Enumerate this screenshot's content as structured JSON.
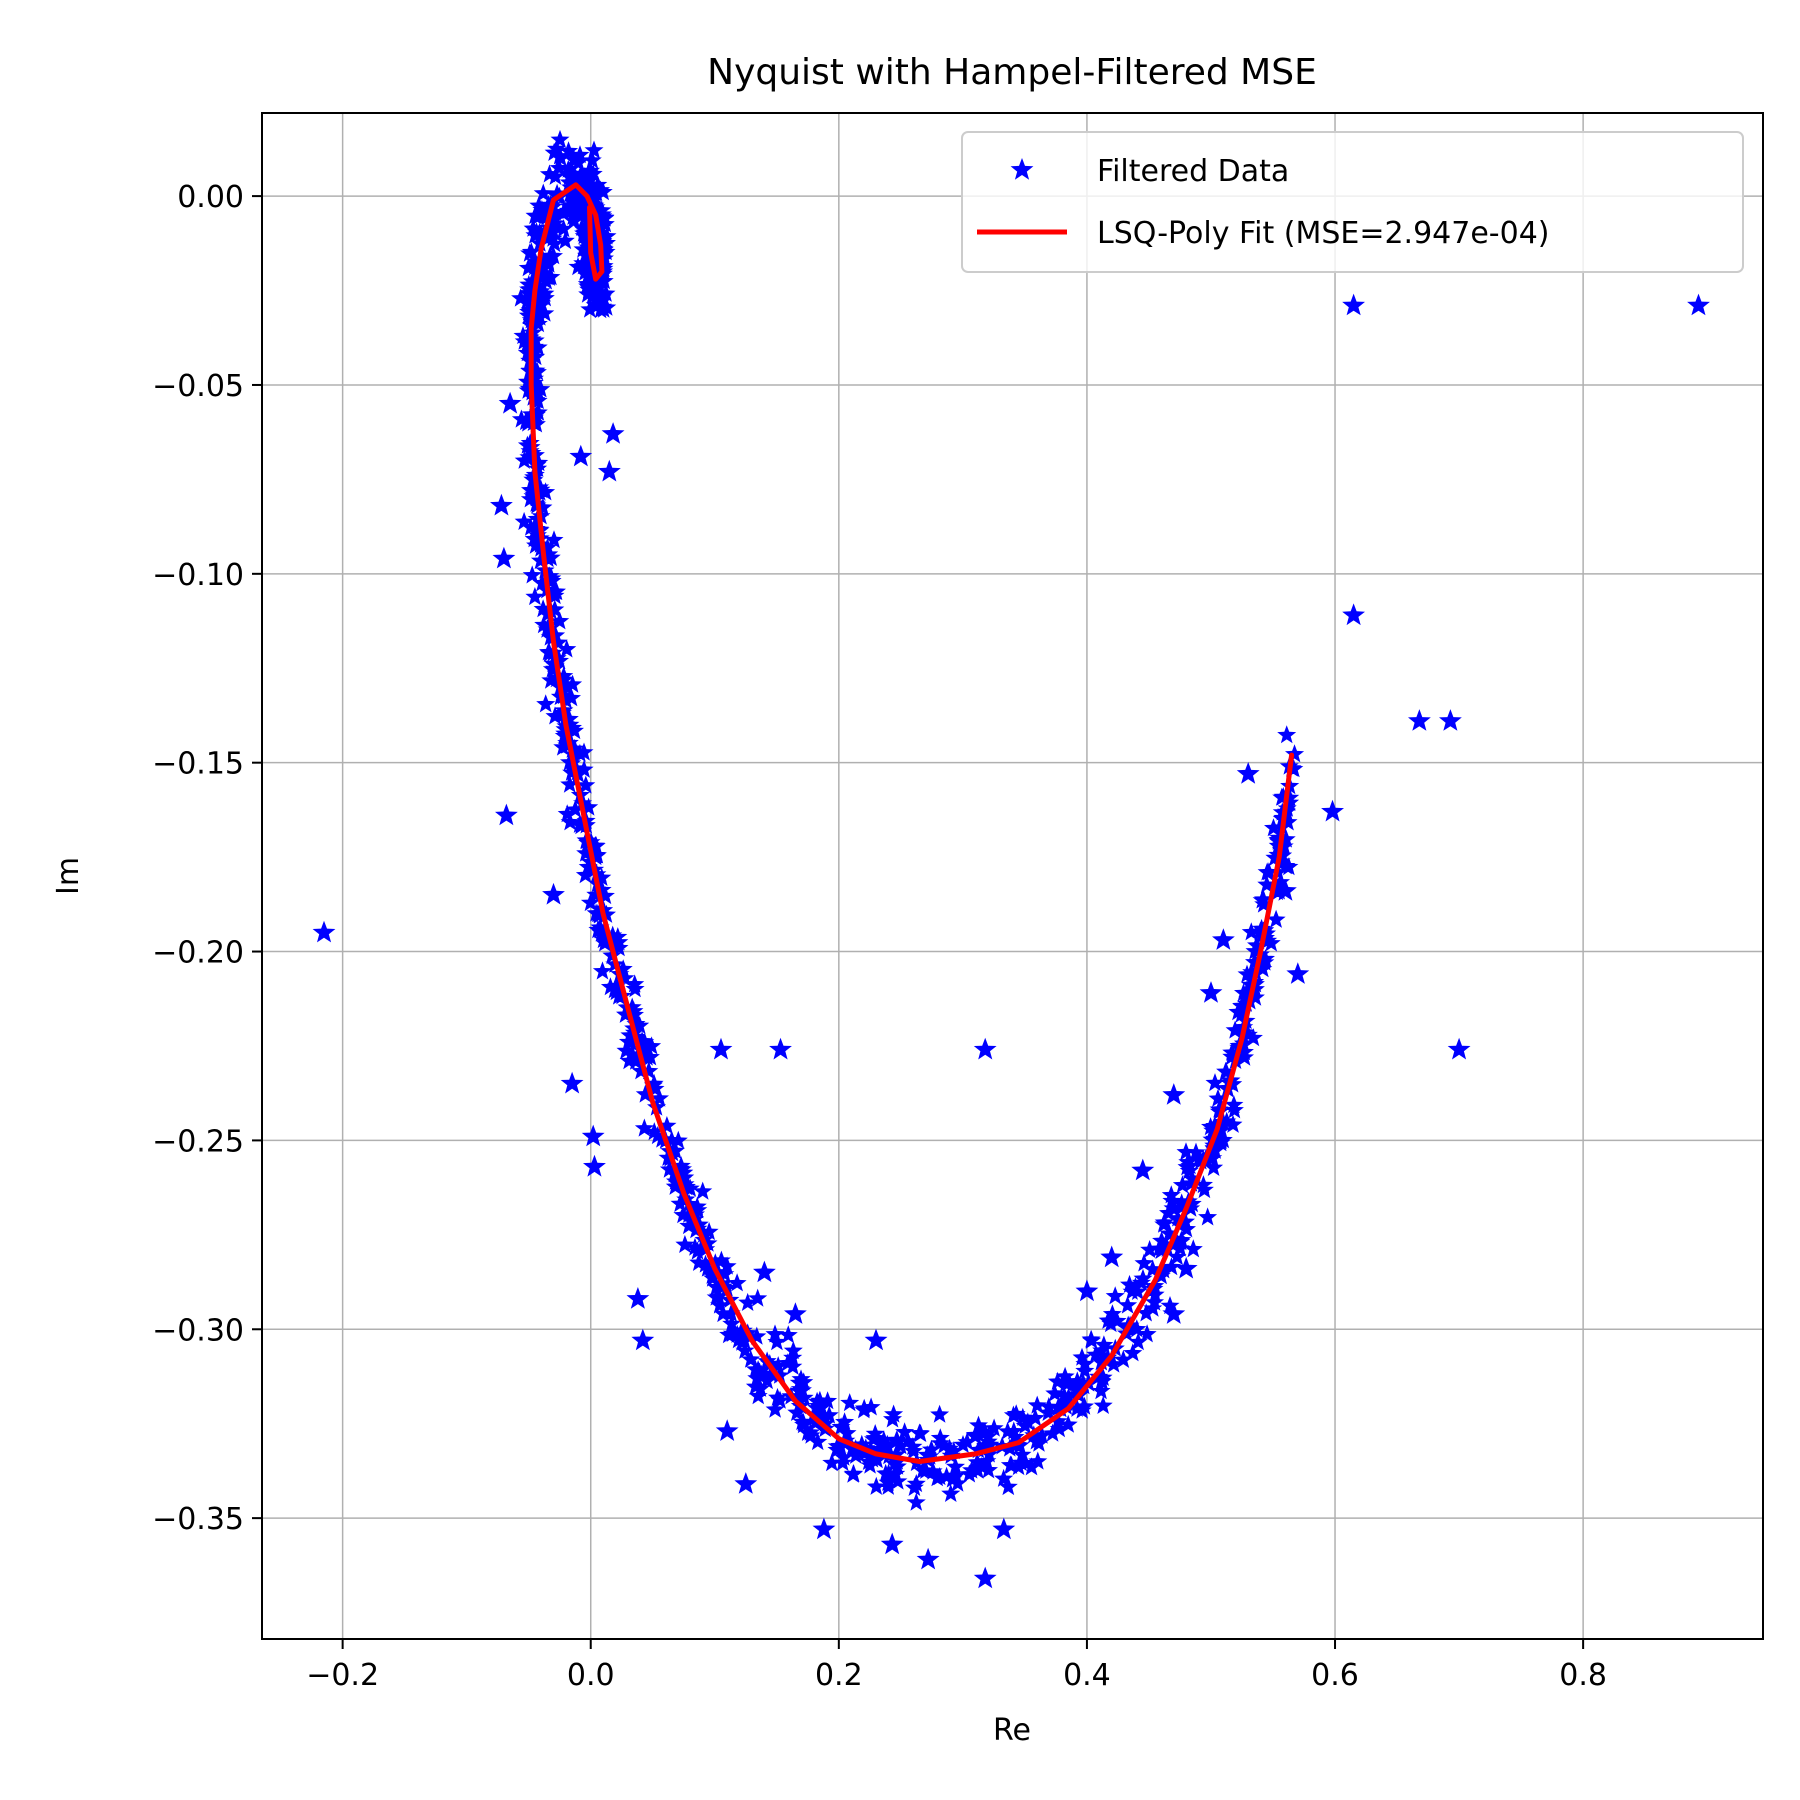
{
  "chart_data": {
    "type": "scatter",
    "title": "Nyquist with Hampel-Filtered MSE",
    "xlabel": "Re",
    "ylabel": "Im",
    "xlim": [
      -0.265,
      0.945
    ],
    "ylim": [
      -0.382,
      0.022
    ],
    "xticks": [
      -0.2,
      0.0,
      0.2,
      0.4,
      0.6,
      0.8
    ],
    "xtick_labels": [
      "−0.2",
      "0.0",
      "0.2",
      "0.4",
      "0.6",
      "0.8"
    ],
    "yticks": [
      0.0,
      -0.05,
      -0.1,
      -0.15,
      -0.2,
      -0.25,
      -0.3,
      -0.35
    ],
    "ytick_labels": [
      "0.00",
      "−0.05",
      "−0.10",
      "−0.15",
      "−0.20",
      "−0.25",
      "−0.30",
      "−0.35"
    ],
    "grid": true,
    "legend_position": "top-right",
    "colors": {
      "data": "#0000ff",
      "fit": "#ff0000",
      "grid": "#b0b0b0"
    },
    "series": [
      {
        "name": "Filtered Data",
        "kind": "scatter",
        "marker": "star",
        "note": "dense cloud of points scattered around the fit curve, plus outliers",
        "outliers": [
          [
            -0.215,
            -0.195
          ],
          [
            0.615,
            -0.029
          ],
          [
            0.893,
            -0.029
          ],
          [
            0.615,
            -0.111
          ],
          [
            0.668,
            -0.139
          ],
          [
            0.693,
            -0.139
          ],
          [
            0.598,
            -0.163
          ],
          [
            0.7,
            -0.226
          ],
          [
            0.105,
            -0.226
          ],
          [
            0.153,
            -0.226
          ],
          [
            0.318,
            -0.226
          ],
          [
            -0.068,
            -0.164
          ],
          [
            -0.07,
            -0.096
          ],
          [
            -0.072,
            -0.082
          ],
          [
            -0.065,
            -0.055
          ],
          [
            0.018,
            -0.063
          ],
          [
            0.015,
            -0.073
          ],
          [
            -0.008,
            -0.069
          ],
          [
            -0.03,
            -0.185
          ],
          [
            -0.015,
            -0.235
          ],
          [
            0.002,
            -0.249
          ],
          [
            0.003,
            -0.257
          ],
          [
            0.038,
            -0.292
          ],
          [
            0.042,
            -0.303
          ],
          [
            0.11,
            -0.327
          ],
          [
            0.125,
            -0.341
          ],
          [
            0.188,
            -0.353
          ],
          [
            0.243,
            -0.357
          ],
          [
            0.272,
            -0.361
          ],
          [
            0.318,
            -0.366
          ],
          [
            0.333,
            -0.353
          ],
          [
            0.23,
            -0.303
          ],
          [
            0.14,
            -0.285
          ],
          [
            0.165,
            -0.296
          ],
          [
            0.4,
            -0.29
          ],
          [
            0.42,
            -0.281
          ],
          [
            0.445,
            -0.258
          ],
          [
            0.47,
            -0.238
          ],
          [
            0.47,
            -0.296
          ],
          [
            0.48,
            -0.284
          ],
          [
            0.5,
            -0.211
          ],
          [
            0.51,
            -0.197
          ],
          [
            0.53,
            -0.153
          ],
          [
            0.56,
            -0.184
          ],
          [
            0.57,
            -0.206
          ]
        ]
      },
      {
        "name": "LSQ-Poly Fit (MSE=2.947e-04)",
        "kind": "line",
        "points": [
          [
            0.565,
            -0.148
          ],
          [
            0.555,
            -0.175
          ],
          [
            0.54,
            -0.2
          ],
          [
            0.525,
            -0.223
          ],
          [
            0.505,
            -0.247
          ],
          [
            0.48,
            -0.268
          ],
          [
            0.455,
            -0.287
          ],
          [
            0.42,
            -0.307
          ],
          [
            0.385,
            -0.321
          ],
          [
            0.345,
            -0.33
          ],
          [
            0.31,
            -0.333
          ],
          [
            0.265,
            -0.335
          ],
          [
            0.23,
            -0.333
          ],
          [
            0.2,
            -0.329
          ],
          [
            0.165,
            -0.319
          ],
          [
            0.13,
            -0.303
          ],
          [
            0.1,
            -0.284
          ],
          [
            0.075,
            -0.264
          ],
          [
            0.05,
            -0.24
          ],
          [
            0.03,
            -0.215
          ],
          [
            0.01,
            -0.19
          ],
          [
            -0.005,
            -0.165
          ],
          [
            -0.02,
            -0.14
          ],
          [
            -0.03,
            -0.118
          ],
          [
            -0.038,
            -0.095
          ],
          [
            -0.045,
            -0.073
          ],
          [
            -0.048,
            -0.05
          ],
          [
            -0.048,
            -0.035
          ],
          [
            -0.045,
            -0.025
          ],
          [
            -0.04,
            -0.014
          ],
          [
            -0.03,
            -0.001
          ],
          [
            -0.012,
            0.003
          ],
          [
            -0.003,
            0.0
          ],
          [
            0.004,
            -0.005
          ],
          [
            0.008,
            -0.013
          ],
          [
            0.009,
            -0.02
          ],
          [
            0.004,
            -0.022
          ],
          [
            0.0,
            -0.015
          ],
          [
            -0.001,
            -0.003
          ]
        ]
      }
    ]
  }
}
